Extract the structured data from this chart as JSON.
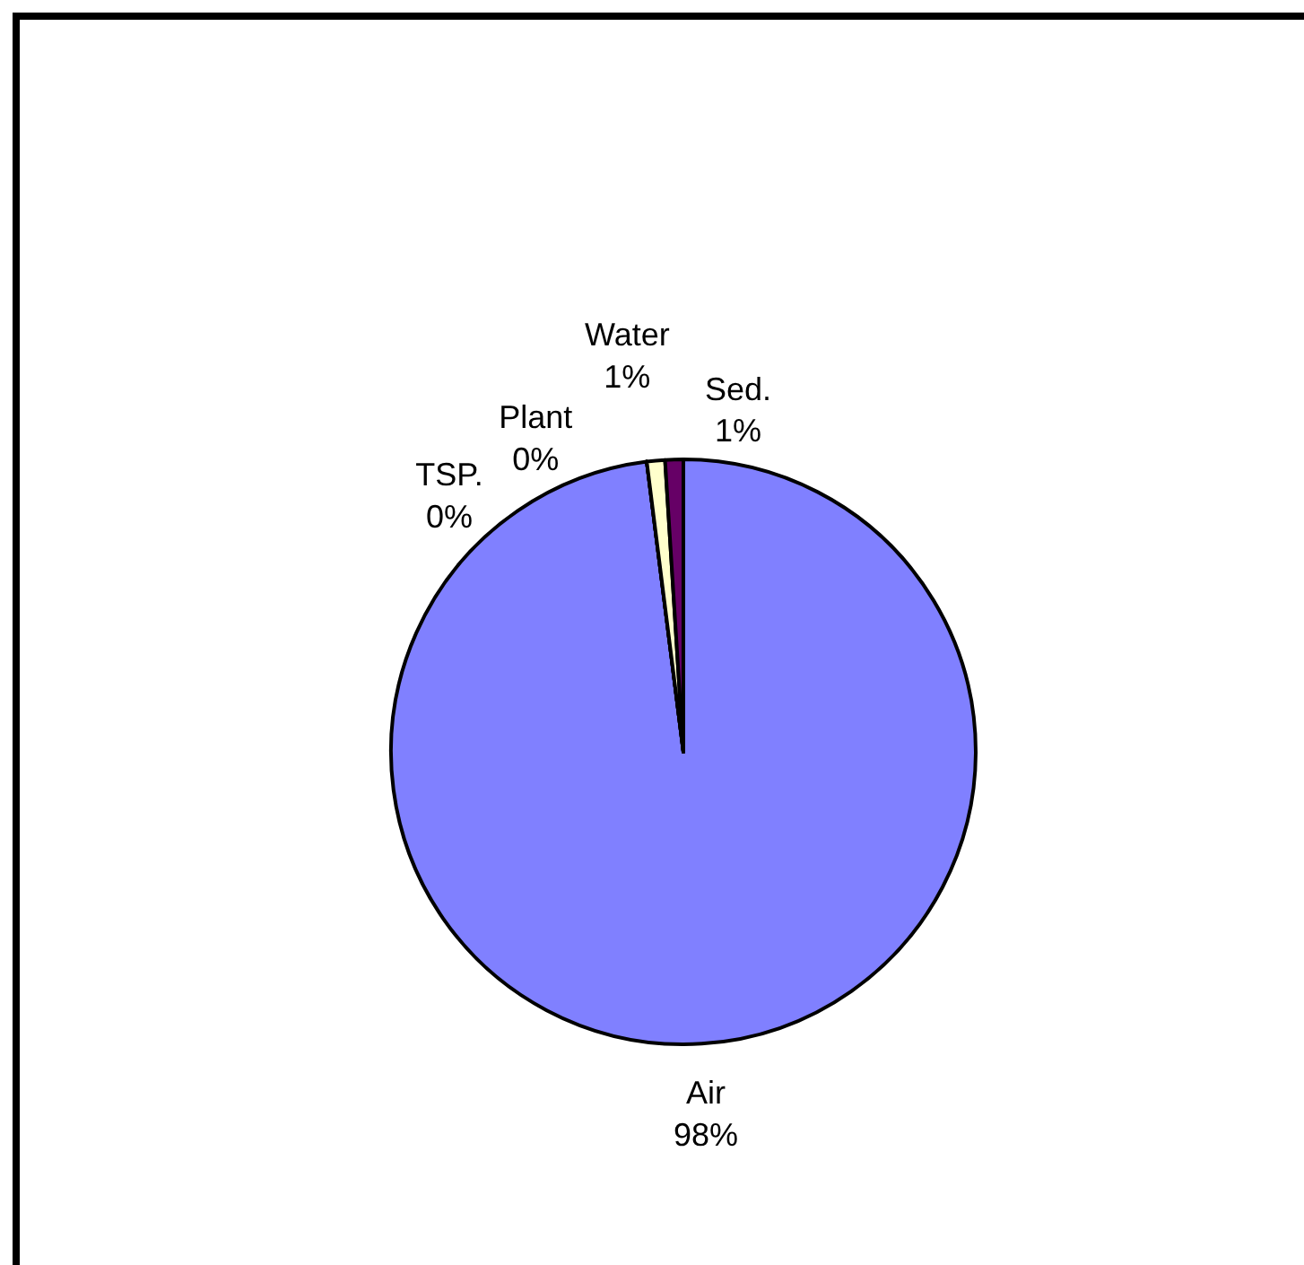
{
  "chart_data": {
    "type": "pie",
    "categories": [
      "Air",
      "TSP.",
      "Plant",
      "Water",
      "Sed."
    ],
    "values": [
      98,
      0,
      0,
      1,
      1
    ],
    "colors": [
      "#8080ff",
      "#ccffff",
      "#993366",
      "#ffffcc",
      "#660066"
    ],
    "value_labels": [
      "98%",
      "0%",
      "0%",
      "1%",
      "1%"
    ]
  }
}
